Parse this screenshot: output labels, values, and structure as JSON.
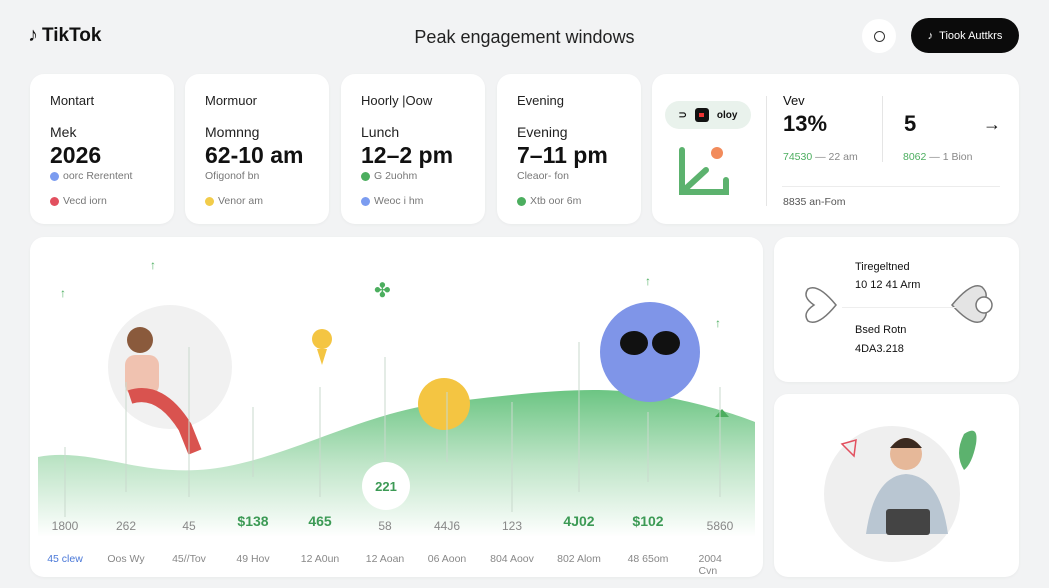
{
  "header": {
    "brand": "TikTok",
    "title": "Peak engagement windows",
    "cta": "Tiook Auttkrs"
  },
  "cards": [
    {
      "label": "Montart",
      "sub": "Mek",
      "value": "2026",
      "m1": "oorc Rerentent",
      "m1_color": "#7b9cf0",
      "m2": "Vecd iorn",
      "m2_color": "#e2505f"
    },
    {
      "label": "Mormuor",
      "sub": "Momnng",
      "value": "62-10 am",
      "m1": "Ofigonof bn",
      "m1_color": "",
      "m2": "Venor am",
      "m2_color": "#f2cc4a"
    },
    {
      "label": "Hoorly |Oow",
      "sub": "Lunch",
      "value": "12–2 pm",
      "m1": "G 2uohm",
      "m1_color": "#4cae5f",
      "m2": "Weoc i hm",
      "m2_color": "#7b9cf0"
    },
    {
      "label": "Evening",
      "sub": "Evening",
      "value": "7–11 pm",
      "m1": "Cleaor- fon",
      "m1_color": "",
      "m2": "Xtb oor 6m",
      "m2_color": "#4cae5f"
    }
  ],
  "summary": {
    "pill": "oloy",
    "stat1_label": "Vev",
    "stat1_value": "13%",
    "stat1_meta_green": "74530",
    "stat1_meta": "— 22 am",
    "stat2_value": "5",
    "stat2_meta_green": "8062",
    "stat2_meta": "— 1 Bion",
    "footer": "8835 an-Fom"
  },
  "chart_data": {
    "type": "area",
    "values": [
      "1800",
      "262",
      "45",
      "$138",
      "465",
      "58",
      "44J6",
      "123",
      "4J02",
      "$102",
      "5860"
    ],
    "highlighted": [
      false,
      false,
      false,
      true,
      true,
      false,
      false,
      false,
      true,
      true,
      false
    ],
    "x_labels": [
      "45 clew",
      "Oos Wy",
      "45//Tov",
      "49 Hov",
      "12 A0un",
      "12 Aoan",
      "06 Aoon",
      "804 Aoov",
      "802 Alom",
      "48 65om",
      "2004 Cvn"
    ],
    "bubble": "221",
    "accent": "#5cbf72"
  },
  "side": {
    "label1": "Tiregeltned",
    "value1": "10 12 41 Arm",
    "label2": "Bsed Rotn",
    "value2": "4DA3.218"
  }
}
